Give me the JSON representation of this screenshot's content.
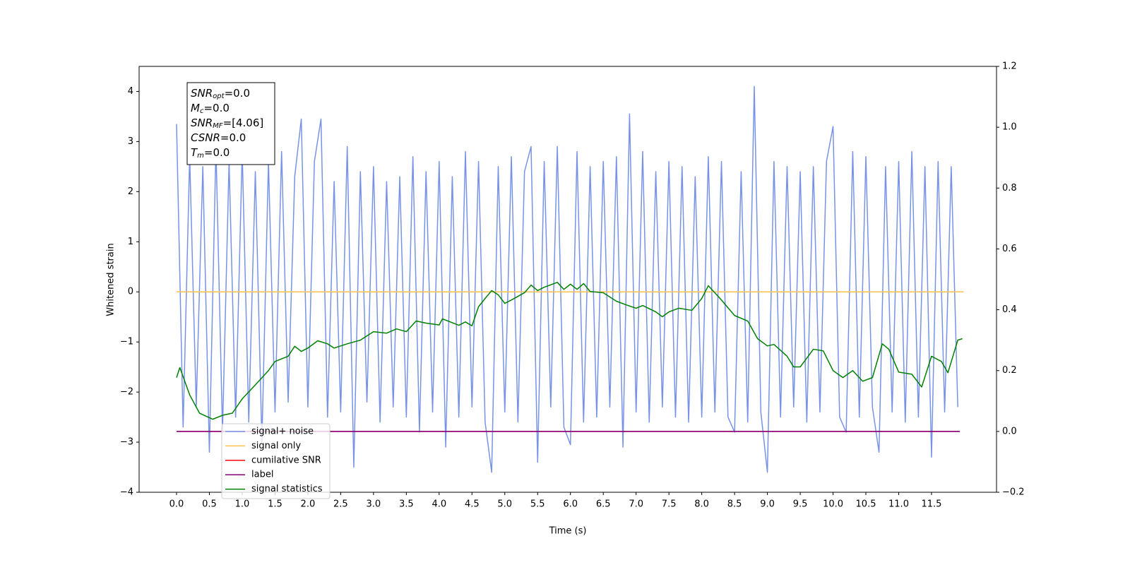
{
  "chart_data": {
    "type": "line",
    "xlabel": "Time (s)",
    "ylabel": "Whitened strain",
    "xlim": [
      -0.57,
      12.49
    ],
    "ylim": [
      -4,
      4.5
    ],
    "y2lim": [
      -0.2,
      1.2
    ],
    "xticks": [
      {
        "value": 0,
        "label": "0.0"
      },
      0.5,
      {
        "value": 1,
        "label": "1.0"
      },
      1.5,
      {
        "value": 2,
        "label": "2.0"
      },
      2.5,
      {
        "value": 3,
        "label": "3.0"
      },
      3.5,
      {
        "value": 4,
        "label": "4.0"
      },
      4.5,
      {
        "value": 5,
        "label": "5.0"
      },
      5.5,
      {
        "value": 6,
        "label": "6.0"
      },
      6.5,
      {
        "value": 7,
        "label": "7.0"
      },
      7.5,
      {
        "value": 8,
        "label": "8.0"
      },
      8.5,
      {
        "value": 9,
        "label": "9.0"
      },
      9.5,
      {
        "value": 10,
        "label": "10.0"
      },
      10.5,
      {
        "value": 11,
        "label": "11.0"
      },
      11.5
    ],
    "yticks": [
      {
        "value": -4,
        "label": "−4"
      },
      {
        "value": -3,
        "label": "−3"
      },
      {
        "value": -2,
        "label": "−2"
      },
      {
        "value": -1,
        "label": "−1"
      },
      0,
      1,
      2,
      3,
      4
    ],
    "y2ticks": [
      {
        "value": -0.2,
        "label": "−0.2"
      },
      {
        "value": 0,
        "label": "0.0"
      },
      0.2,
      0.4,
      0.6,
      0.8,
      {
        "value": 1,
        "label": "1.0"
      },
      1.2
    ],
    "grid": false,
    "legend": "lower left",
    "annotations": [
      {
        "name": "SNR",
        "subscript": "opt",
        "text": "=0.0"
      },
      {
        "name": "M",
        "subscript": "c",
        "text": "=0.0"
      },
      {
        "name": "SNR",
        "subscript": "MF",
        "text": "=[4.06]"
      },
      {
        "name": "CSNR",
        "subscript": "",
        "text": "=0.0"
      },
      {
        "name": "T",
        "subscript": "m",
        "text": "=0.0"
      }
    ],
    "series": [
      {
        "name": "signal+ noise",
        "color": "#7893e6",
        "axis": "y",
        "x": [
          0.0,
          0.1,
          0.2,
          0.3,
          0.4,
          0.5,
          0.6,
          0.7,
          0.8,
          0.9,
          1.0,
          1.1,
          1.2,
          1.3,
          1.4,
          1.5,
          1.6,
          1.7,
          1.8,
          1.9,
          2.0,
          2.1,
          2.2,
          2.3,
          2.4,
          2.5,
          2.6,
          2.7,
          2.8,
          2.9,
          3.0,
          3.1,
          3.2,
          3.3,
          3.4,
          3.5,
          3.6,
          3.7,
          3.8,
          3.9,
          4.0,
          4.1,
          4.2,
          4.3,
          4.4,
          4.5,
          4.6,
          4.7,
          4.8,
          4.9,
          5.0,
          5.1,
          5.2,
          5.3,
          5.4,
          5.5,
          5.6,
          5.7,
          5.8,
          5.9,
          6.0,
          6.1,
          6.2,
          6.3,
          6.4,
          6.5,
          6.6,
          6.7,
          6.8,
          6.9,
          7.0,
          7.1,
          7.2,
          7.3,
          7.4,
          7.5,
          7.6,
          7.7,
          7.8,
          7.9,
          8.0,
          8.1,
          8.2,
          8.3,
          8.4,
          8.5,
          8.6,
          8.7,
          8.8,
          8.9,
          9.0,
          9.1,
          9.2,
          9.3,
          9.4,
          9.5,
          9.6,
          9.7,
          9.8,
          9.9,
          10.0,
          10.1,
          10.2,
          10.3,
          10.4,
          10.5,
          10.6,
          10.7,
          10.8,
          10.9,
          11.0,
          11.1,
          11.2,
          11.3,
          11.4,
          11.5,
          11.6,
          11.7,
          11.8,
          11.9
        ],
        "values": [
          3.35,
          -2.7,
          2.7,
          -2.3,
          2.5,
          -3.2,
          2.9,
          -2.8,
          2.6,
          -2.5,
          2.8,
          -2.6,
          2.4,
          -3.0,
          2.6,
          -2.4,
          2.8,
          -2.2,
          2.3,
          3.45,
          -2.3,
          2.6,
          3.45,
          -2.5,
          2.2,
          -2.4,
          2.9,
          -3.5,
          2.4,
          -2.2,
          2.5,
          -2.6,
          2.2,
          -2.3,
          2.3,
          -2.5,
          2.7,
          -2.8,
          2.4,
          -2.4,
          2.6,
          -3.1,
          2.3,
          -2.5,
          2.8,
          -2.3,
          2.6,
          -2.6,
          -3.6,
          2.5,
          -2.4,
          2.7,
          -2.6,
          2.4,
          2.9,
          -3.4,
          2.6,
          -2.3,
          2.9,
          -2.7,
          -3.05,
          2.8,
          -2.6,
          2.5,
          -2.5,
          2.6,
          -2.3,
          2.7,
          -3.1,
          3.55,
          -2.4,
          2.8,
          -2.6,
          2.4,
          -2.3,
          2.6,
          -2.5,
          2.5,
          -2.6,
          2.3,
          -2.5,
          2.7,
          -2.4,
          2.6,
          -2.5,
          -2.8,
          2.4,
          -2.6,
          4.1,
          -2.4,
          -3.6,
          2.6,
          -2.5,
          2.5,
          -2.3,
          2.4,
          -2.6,
          2.5,
          -2.4,
          2.6,
          3.3,
          -2.5,
          -2.8,
          2.8,
          -2.5,
          2.7,
          -2.3,
          -3.2,
          2.5,
          -2.4,
          2.6,
          -2.6,
          2.8,
          -2.5,
          2.5,
          -3.3,
          2.6,
          -2.4,
          2.5,
          -2.3
        ]
      },
      {
        "name": "signal only",
        "color": "#ffc04d",
        "axis": "y",
        "x": [
          0.0,
          11.99
        ],
        "values": [
          0,
          0
        ]
      },
      {
        "name": "cumilative SNR",
        "color": "#ff0000",
        "axis": "y2",
        "x": [
          0.0,
          11.93
        ],
        "values": [
          0,
          0
        ]
      },
      {
        "name": "label",
        "color": "#800080",
        "axis": "y2",
        "x": [
          0.0,
          11.93
        ],
        "values": [
          0,
          0
        ]
      },
      {
        "name": "signal statistics",
        "color": "#008000",
        "axis": "y2",
        "x": [
          0,
          0.05,
          0.2,
          0.35,
          0.5,
          0.55,
          0.7,
          0.85,
          1.0,
          1.2,
          1.4,
          1.5,
          1.7,
          1.8,
          1.9,
          2.0,
          2.15,
          2.3,
          2.4,
          2.6,
          2.8,
          3.0,
          3.2,
          3.35,
          3.5,
          3.65,
          3.8,
          4.0,
          4.05,
          4.3,
          4.4,
          4.5,
          4.6,
          4.7,
          4.8,
          4.9,
          5.0,
          5.1,
          5.3,
          5.4,
          5.5,
          5.6,
          5.8,
          5.9,
          6.0,
          6.1,
          6.2,
          6.3,
          6.5,
          6.7,
          6.85,
          7.0,
          7.1,
          7.3,
          7.4,
          7.5,
          7.65,
          7.85,
          8.0,
          8.1,
          8.3,
          8.5,
          8.7,
          8.85,
          9.0,
          9.1,
          9.3,
          9.4,
          9.5,
          9.7,
          9.85,
          10.0,
          10.15,
          10.3,
          10.45,
          10.6,
          10.75,
          10.85,
          11.0,
          11.2,
          11.35,
          11.5,
          11.65,
          11.75,
          11.9,
          11.97
        ],
        "values": [
          0.177,
          0.21,
          0.12,
          0.06,
          0.045,
          0.04,
          0.053,
          0.06,
          0.107,
          0.153,
          0.2,
          0.23,
          0.247,
          0.28,
          0.263,
          0.274,
          0.298,
          0.288,
          0.274,
          0.288,
          0.3,
          0.328,
          0.323,
          0.337,
          0.328,
          0.363,
          0.356,
          0.35,
          0.37,
          0.349,
          0.36,
          0.347,
          0.41,
          0.437,
          0.463,
          0.449,
          0.421,
          0.432,
          0.456,
          0.481,
          0.463,
          0.474,
          0.49,
          0.467,
          0.484,
          0.467,
          0.486,
          0.46,
          0.456,
          0.428,
          0.416,
          0.405,
          0.414,
          0.393,
          0.377,
          0.393,
          0.405,
          0.398,
          0.437,
          0.479,
          0.432,
          0.381,
          0.363,
          0.305,
          0.281,
          0.286,
          0.247,
          0.212,
          0.212,
          0.27,
          0.265,
          0.2,
          0.177,
          0.2,
          0.165,
          0.177,
          0.288,
          0.27,
          0.195,
          0.188,
          0.146,
          0.247,
          0.23,
          0.193,
          0.3,
          0.305
        ]
      }
    ]
  }
}
